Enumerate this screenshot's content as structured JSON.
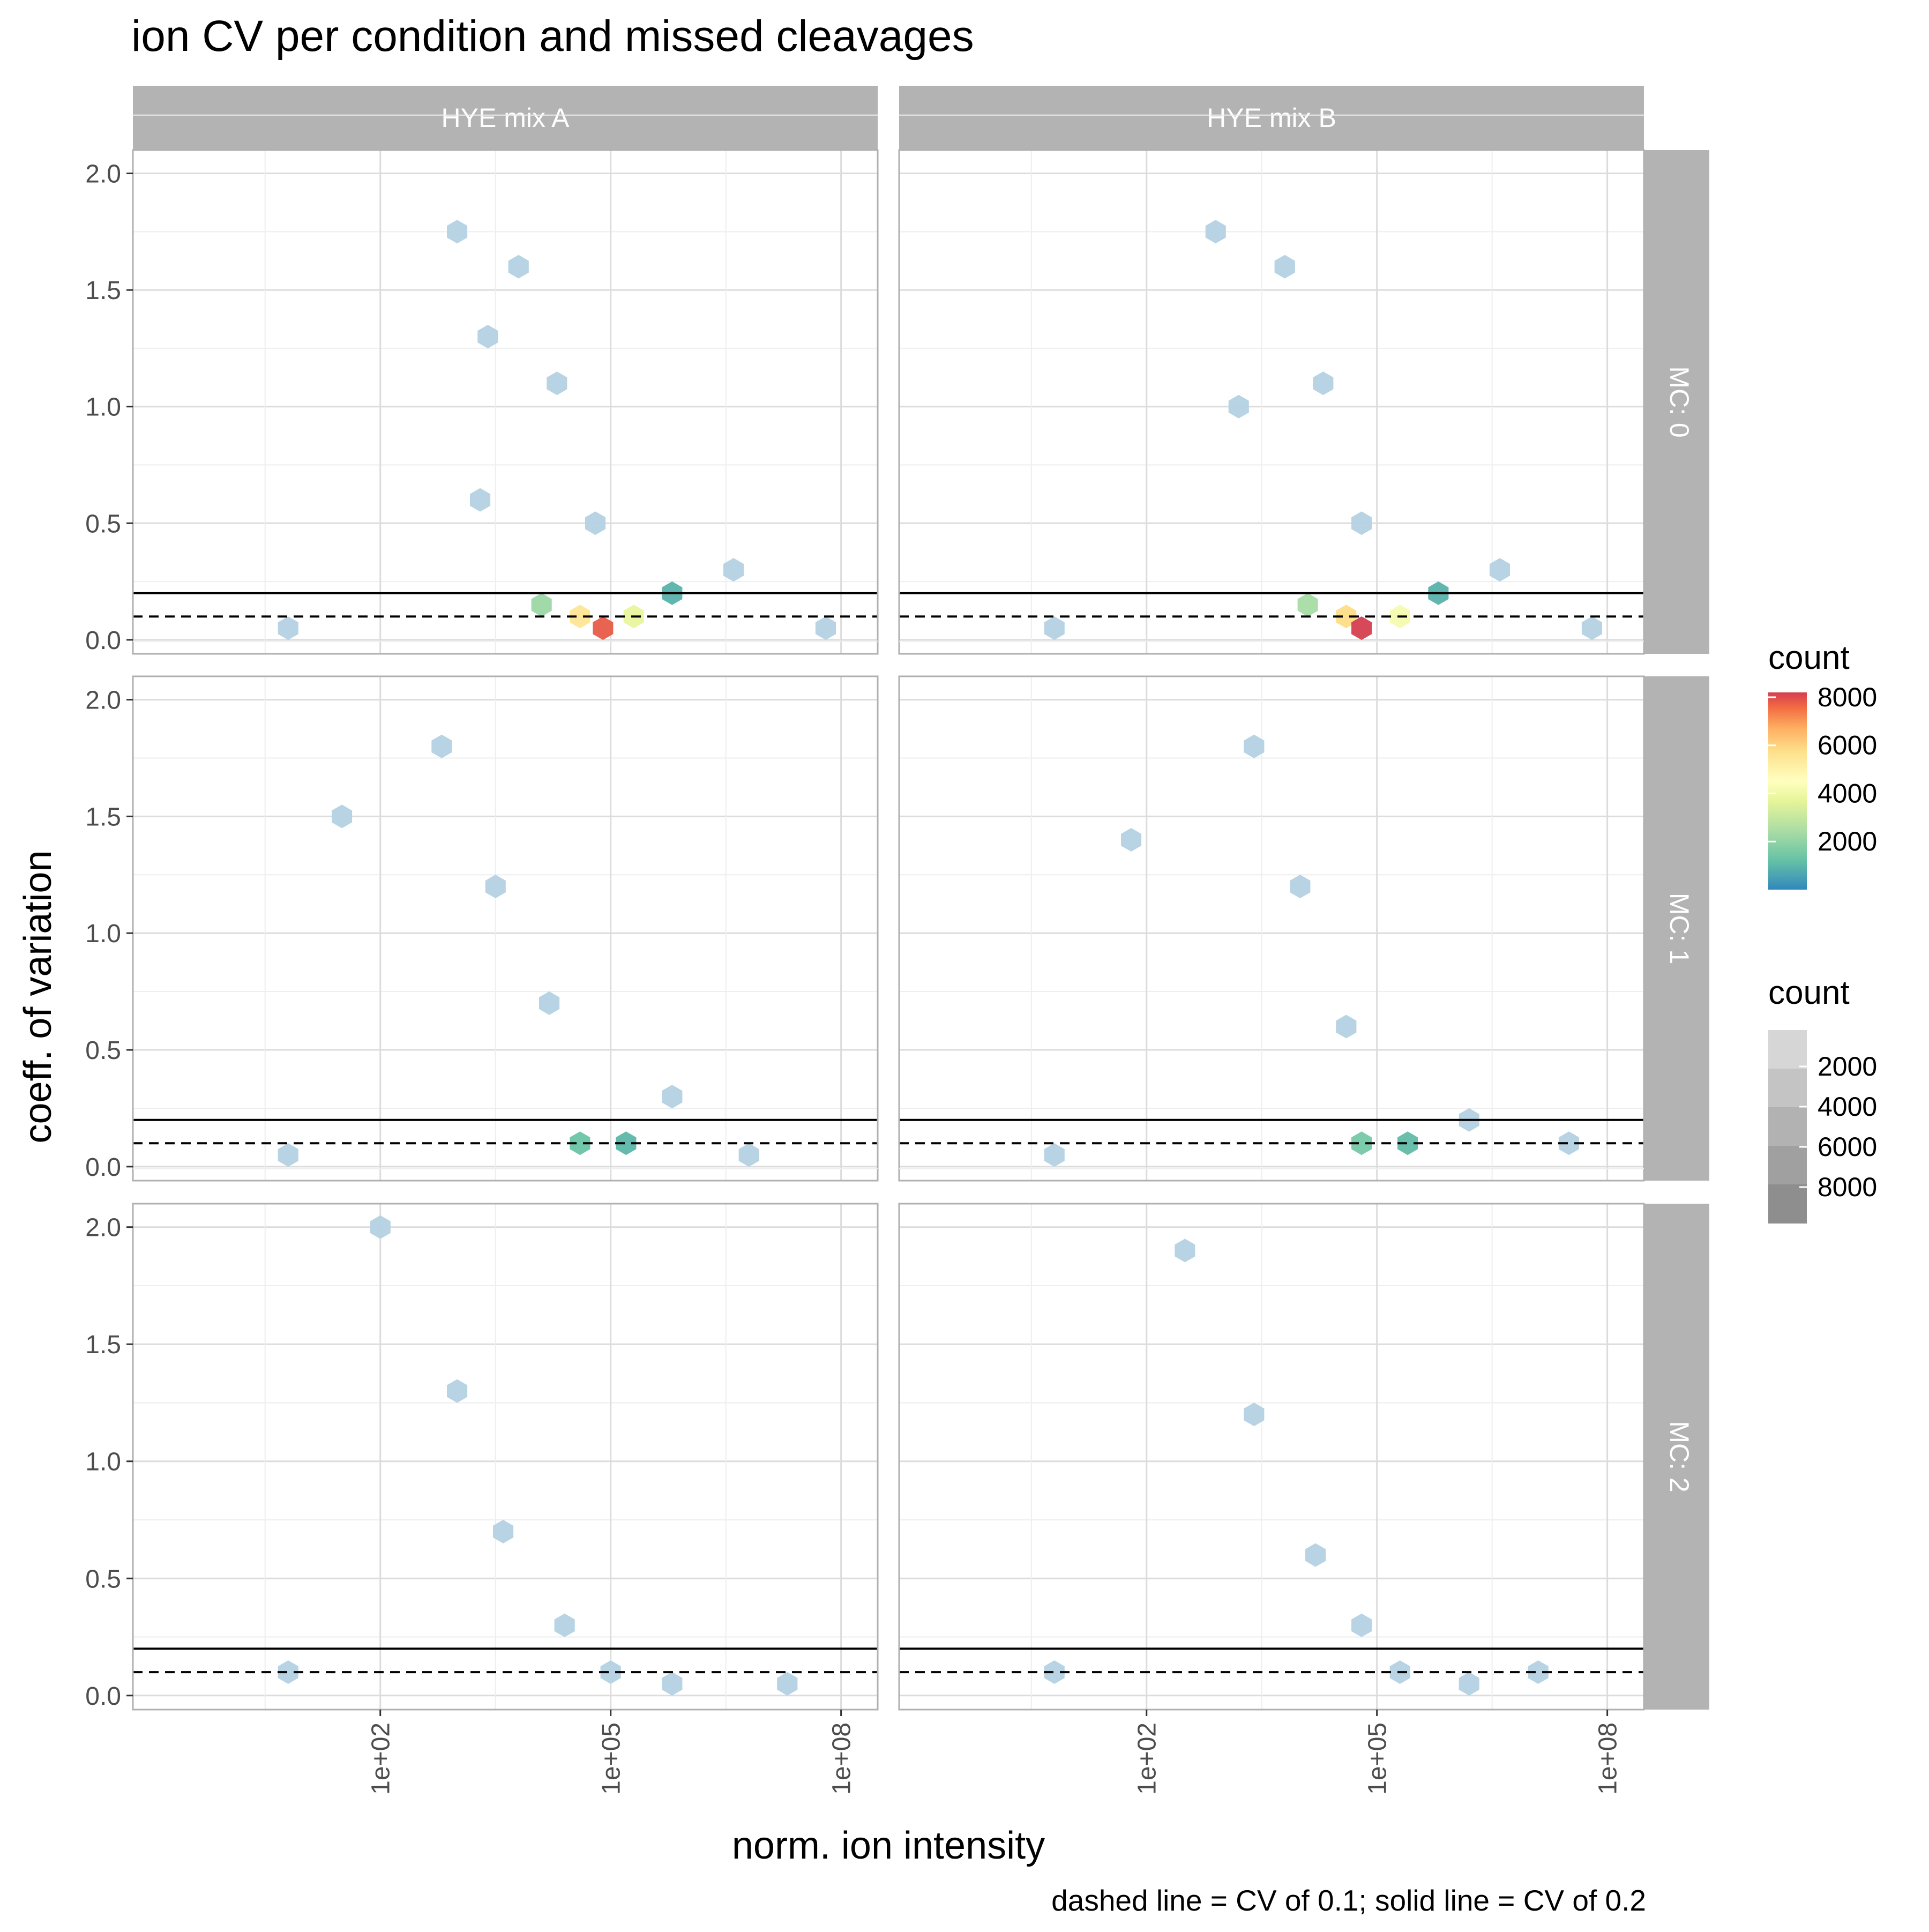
{
  "chart_data": {
    "type": "heatmap",
    "title": "ion CV per condition and missed cleavages",
    "caption": "dashed line = CV of 0.1; solid line = CV of 0.2",
    "xlabel": "norm. ion intensity",
    "ylabel": "coeff. of variation",
    "x_scale": "log10",
    "xlim": [
      0.06,
      300000000.0
    ],
    "ylim": [
      -0.06,
      2.1
    ],
    "x_ticks": [
      100,
      100000,
      100000000
    ],
    "x_tick_labels": [
      "1e+02",
      "1e+05",
      "1e+08"
    ],
    "y_ticks": [
      0,
      0.5,
      1,
      1.5,
      2
    ],
    "y_tick_labels": [
      "0.0",
      "0.5",
      "1.0",
      "1.5",
      "2.0"
    ],
    "grid": true,
    "facet_columns": [
      "HYE mix A",
      "HYE mix B"
    ],
    "facet_rows": [
      "MC: 0",
      "MC: 1",
      "MC: 2"
    ],
    "reference_lines": [
      {
        "y": 0.1,
        "style": "dashed"
      },
      {
        "y": 0.2,
        "style": "solid"
      }
    ],
    "colors": {
      "low": "#b3d1e3",
      "mid": "#ffffbf",
      "high": "#d7303a",
      "grid": "#dcdcdc",
      "strip": "#b3b3b3"
    },
    "legends": [
      {
        "title": "count",
        "kind": "colorbar",
        "ticks": [
          2000,
          4000,
          6000,
          8000
        ]
      },
      {
        "title": "count",
        "kind": "alpha",
        "ticks": [
          2000,
          4000,
          6000,
          8000
        ]
      }
    ],
    "panels": [
      {
        "col": "HYE mix A",
        "row": "MC: 0",
        "bins": [
          {
            "x": 3.0,
            "y": 1.75,
            "count": 10
          },
          {
            "x": 3.4,
            "y": 1.3,
            "count": 10
          },
          {
            "x": 3.3,
            "y": 0.6,
            "count": 10
          },
          {
            "x": 3.8,
            "y": 1.6,
            "count": 80
          },
          {
            "x": 4.3,
            "y": 1.1,
            "count": 250
          },
          {
            "x": 4.8,
            "y": 0.5,
            "count": 600
          },
          {
            "x": 4.6,
            "y": 0.1,
            "count": 5500
          },
          {
            "x": 4.9,
            "y": 0.05,
            "count": 7800
          },
          {
            "x": 5.3,
            "y": 0.1,
            "count": 3800
          },
          {
            "x": 4.1,
            "y": 0.15,
            "count": 2200
          },
          {
            "x": 5.8,
            "y": 0.2,
            "count": 900
          },
          {
            "x": 6.6,
            "y": 0.3,
            "count": 120
          },
          {
            "x": 7.8,
            "y": 0.05,
            "count": 10
          },
          {
            "x": 0.8,
            "y": 0.05,
            "count": 5
          }
        ]
      },
      {
        "col": "HYE mix B",
        "row": "MC: 0",
        "bins": [
          {
            "x": 2.9,
            "y": 1.75,
            "count": 10
          },
          {
            "x": 3.2,
            "y": 1.0,
            "count": 10
          },
          {
            "x": 3.8,
            "y": 1.6,
            "count": 80
          },
          {
            "x": 4.3,
            "y": 1.1,
            "count": 250
          },
          {
            "x": 4.8,
            "y": 0.5,
            "count": 600
          },
          {
            "x": 4.6,
            "y": 0.1,
            "count": 5800
          },
          {
            "x": 4.8,
            "y": 0.05,
            "count": 8200
          },
          {
            "x": 5.3,
            "y": 0.1,
            "count": 4200
          },
          {
            "x": 4.1,
            "y": 0.15,
            "count": 2400
          },
          {
            "x": 5.8,
            "y": 0.2,
            "count": 900
          },
          {
            "x": 6.6,
            "y": 0.3,
            "count": 120
          },
          {
            "x": 7.8,
            "y": 0.05,
            "count": 10
          },
          {
            "x": 0.8,
            "y": 0.05,
            "count": 5
          }
        ]
      },
      {
        "col": "HYE mix A",
        "row": "MC: 1",
        "bins": [
          {
            "x": 1.5,
            "y": 1.5,
            "count": 5
          },
          {
            "x": 2.8,
            "y": 1.8,
            "count": 40
          },
          {
            "x": 3.5,
            "y": 1.2,
            "count": 150
          },
          {
            "x": 4.2,
            "y": 0.7,
            "count": 400
          },
          {
            "x": 4.6,
            "y": 0.1,
            "count": 1300
          },
          {
            "x": 5.2,
            "y": 0.1,
            "count": 1000
          },
          {
            "x": 5.8,
            "y": 0.3,
            "count": 250
          },
          {
            "x": 6.8,
            "y": 0.05,
            "count": 20
          },
          {
            "x": 0.8,
            "y": 0.05,
            "count": 5
          }
        ]
      },
      {
        "col": "HYE mix B",
        "row": "MC: 1",
        "bins": [
          {
            "x": 1.8,
            "y": 1.4,
            "count": 5
          },
          {
            "x": 3.4,
            "y": 1.8,
            "count": 40
          },
          {
            "x": 4.0,
            "y": 1.2,
            "count": 150
          },
          {
            "x": 4.6,
            "y": 0.6,
            "count": 400
          },
          {
            "x": 4.8,
            "y": 0.1,
            "count": 1500
          },
          {
            "x": 5.4,
            "y": 0.1,
            "count": 1100
          },
          {
            "x": 6.2,
            "y": 0.2,
            "count": 250
          },
          {
            "x": 7.5,
            "y": 0.1,
            "count": 10
          },
          {
            "x": 0.8,
            "y": 0.05,
            "count": 5
          }
        ]
      },
      {
        "col": "HYE mix A",
        "row": "MC: 2",
        "bins": [
          {
            "x": 2.0,
            "y": 2.0,
            "count": 5
          },
          {
            "x": 3.0,
            "y": 1.3,
            "count": 15
          },
          {
            "x": 3.6,
            "y": 0.7,
            "count": 60
          },
          {
            "x": 4.4,
            "y": 0.3,
            "count": 120
          },
          {
            "x": 5.0,
            "y": 0.1,
            "count": 150
          },
          {
            "x": 5.8,
            "y": 0.05,
            "count": 40
          },
          {
            "x": 7.3,
            "y": 0.05,
            "count": 5
          },
          {
            "x": 0.8,
            "y": 0.1,
            "count": 5
          }
        ]
      },
      {
        "col": "HYE mix B",
        "row": "MC: 2",
        "bins": [
          {
            "x": 2.5,
            "y": 1.9,
            "count": 5
          },
          {
            "x": 3.4,
            "y": 1.2,
            "count": 15
          },
          {
            "x": 4.2,
            "y": 0.6,
            "count": 60
          },
          {
            "x": 4.8,
            "y": 0.3,
            "count": 120
          },
          {
            "x": 5.3,
            "y": 0.1,
            "count": 150
          },
          {
            "x": 6.2,
            "y": 0.05,
            "count": 40
          },
          {
            "x": 7.1,
            "y": 0.1,
            "count": 5
          },
          {
            "x": 0.8,
            "y": 0.1,
            "count": 5
          }
        ]
      }
    ]
  }
}
